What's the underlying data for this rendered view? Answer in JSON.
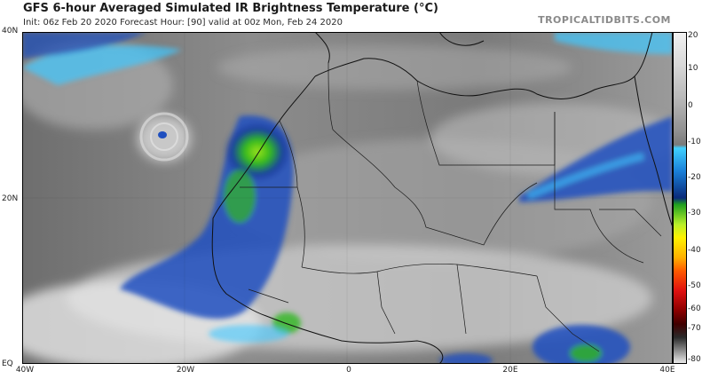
{
  "header": {
    "title": "GFS 6-hour Averaged Simulated IR Brightness Temperature (°C)",
    "subtitle": "Init: 06z Feb 20 2020   Forecast Hour: [90]   valid at 00z Mon, Feb 24 2020",
    "brand": "TROPICALTIDBITS.COM"
  },
  "map_axes": {
    "lat_labels": [
      "40N",
      "20N",
      "EQ"
    ],
    "lon_labels": [
      "40W",
      "20W",
      "0",
      "20E",
      "40E"
    ]
  },
  "colorbar": {
    "labels": [
      "20",
      "10",
      "0",
      "-10",
      "-20",
      "-30",
      "-40",
      "-50",
      "-60",
      "-70",
      "-80"
    ],
    "colors": {
      "warm": "#d0d0d0",
      "grey_mid": "#8a8a8a",
      "cyan": "#40d0ff",
      "blue": "#1f4fbf",
      "navy": "#0a2a7a",
      "green": "#3fcf1f",
      "lime": "#b8f02a",
      "yellow": "#fff200",
      "orange": "#ff8a00",
      "red": "#e01010",
      "dark": "#400000"
    }
  }
}
